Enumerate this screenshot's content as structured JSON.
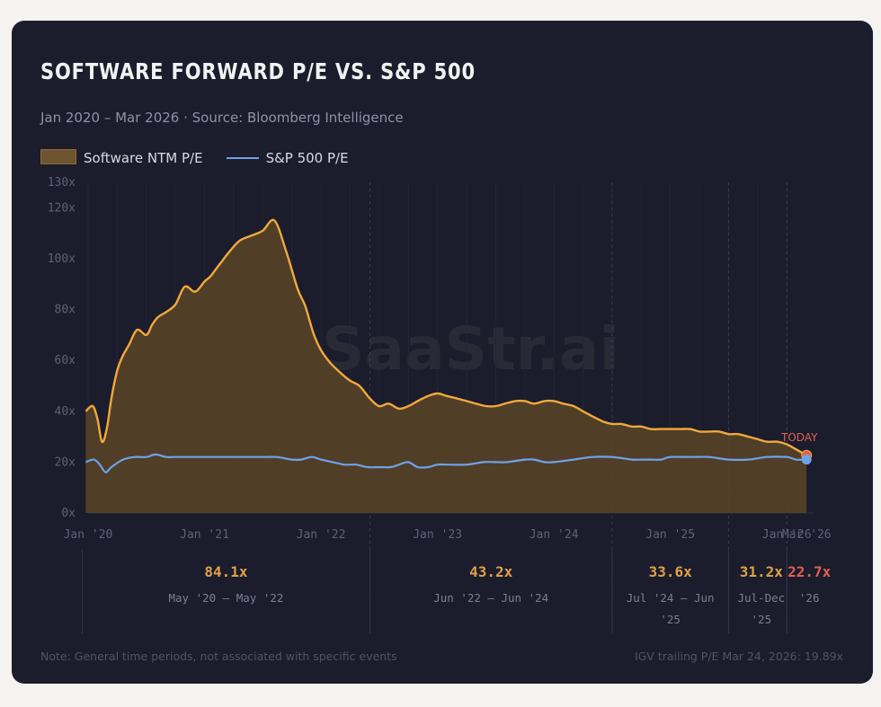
{
  "title": "SOFTWARE FORWARD P/E VS. S&P 500",
  "subtitle": "Jan 2020 – Mar 2026  ·  Source: Bloomberg Intelligence",
  "legend": {
    "software": "Software NTM P/E",
    "sp500": "S&P 500 P/E"
  },
  "watermark": "SaaStr.ai",
  "today_label": "TODAY",
  "footnote_left": "Note: General time periods, not associated with specific events",
  "footnote_right": "IGV trailing P/E Mar 24, 2026: 19.89x",
  "colors": {
    "software": "#f0a93b",
    "sp500": "#6ea2ea",
    "today": "#e06050",
    "card": "#1b1c2c"
  },
  "chart_data": {
    "type": "area",
    "title": "SOFTWARE FORWARD P/E VS. S&P 500",
    "xlabel": "",
    "ylabel": "",
    "x_range": [
      2020.0,
      2026.23
    ],
    "ylim": [
      0,
      130
    ],
    "y_ticks": [
      0,
      20,
      40,
      60,
      80,
      100,
      120,
      130
    ],
    "y_tick_labels": [
      "0x",
      "20x",
      "40x",
      "60x",
      "80x",
      "100x",
      "120x",
      "130x"
    ],
    "x_ticks": [
      2020.0,
      2021.0,
      2022.0,
      2023.0,
      2024.0,
      2025.0,
      2026.0,
      2026.17
    ],
    "x_tick_labels": [
      "Jan '20",
      "Jan '21",
      "Jan '22",
      "Jan '23",
      "Jan '24",
      "Jan '25",
      "Jan '26",
      "Mar '26"
    ],
    "period_dividers": [
      2022.42,
      2024.5,
      2025.5,
      2026.0
    ],
    "series": [
      {
        "name": "Software NTM P/E",
        "style": "area",
        "x": [
          2019.98,
          2020.04,
          2020.08,
          2020.12,
          2020.16,
          2020.2,
          2020.25,
          2020.3,
          2020.35,
          2020.42,
          2020.5,
          2020.55,
          2020.6,
          2020.67,
          2020.75,
          2020.83,
          2020.92,
          2021.0,
          2021.05,
          2021.1,
          2021.15,
          2021.2,
          2021.3,
          2021.4,
          2021.5,
          2021.6,
          2021.7,
          2021.8,
          2021.86,
          2021.9,
          2021.94,
          2022.0,
          2022.08,
          2022.17,
          2022.25,
          2022.33,
          2022.42,
          2022.5,
          2022.58,
          2022.67,
          2022.75,
          2022.83,
          2022.92,
          2023.0,
          2023.08,
          2023.17,
          2023.25,
          2023.33,
          2023.42,
          2023.5,
          2023.58,
          2023.67,
          2023.75,
          2023.83,
          2023.92,
          2024.0,
          2024.08,
          2024.17,
          2024.25,
          2024.33,
          2024.42,
          2024.5,
          2024.58,
          2024.67,
          2024.75,
          2024.83,
          2024.92,
          2025.0,
          2025.08,
          2025.17,
          2025.25,
          2025.33,
          2025.42,
          2025.5,
          2025.58,
          2025.67,
          2025.75,
          2025.83,
          2025.92,
          2026.0,
          2026.08,
          2026.17
        ],
        "values": [
          40,
          42,
          37,
          28,
          33,
          45,
          56,
          62,
          66,
          72,
          70,
          74,
          77,
          79,
          82,
          89,
          87,
          91,
          93,
          96,
          99,
          102,
          107,
          109,
          111,
          115,
          103,
          88,
          82,
          76,
          70,
          64,
          59,
          55,
          52,
          50,
          45,
          42,
          43,
          41,
          42,
          44,
          46,
          47,
          46,
          45,
          44,
          43,
          42,
          42,
          43,
          44,
          44,
          43,
          44,
          44,
          43,
          42,
          40,
          38,
          36,
          35,
          35,
          34,
          34,
          33,
          33,
          33,
          33,
          33,
          32,
          32,
          32,
          31,
          31,
          30,
          29,
          28,
          28,
          27,
          25,
          22.7
        ]
      },
      {
        "name": "S&P 500 P/E",
        "style": "line",
        "x": [
          2019.98,
          2020.05,
          2020.1,
          2020.15,
          2020.2,
          2020.3,
          2020.4,
          2020.5,
          2020.58,
          2020.67,
          2020.75,
          2021.0,
          2021.25,
          2021.5,
          2021.62,
          2021.75,
          2021.83,
          2021.92,
          2022.0,
          2022.1,
          2022.2,
          2022.3,
          2022.4,
          2022.5,
          2022.6,
          2022.67,
          2022.75,
          2022.83,
          2022.92,
          2023.0,
          2023.1,
          2023.25,
          2023.4,
          2023.5,
          2023.6,
          2023.75,
          2023.83,
          2023.92,
          2024.0,
          2024.17,
          2024.33,
          2024.5,
          2024.67,
          2024.75,
          2024.83,
          2024.92,
          2025.0,
          2025.17,
          2025.33,
          2025.5,
          2025.67,
          2025.83,
          2026.0,
          2026.08,
          2026.17
        ],
        "values": [
          20,
          21,
          19,
          16,
          18,
          21,
          22,
          22,
          23,
          22,
          22,
          22,
          22,
          22,
          22,
          21,
          21,
          22,
          21,
          20,
          19,
          19,
          18,
          18,
          18,
          19,
          20,
          18,
          18,
          19,
          19,
          19,
          20,
          20,
          20,
          21,
          21,
          20,
          20,
          21,
          22,
          22,
          21,
          21,
          21,
          21,
          22,
          22,
          22,
          21,
          21,
          22,
          22,
          21,
          21
        ]
      }
    ],
    "annotations": [
      {
        "text": "TODAY",
        "x": 2026.0,
        "y": 29
      }
    ],
    "periods": [
      {
        "value": "84.1x",
        "label_lines": [
          "May '20 – May '22"
        ],
        "x_start": 2019.98,
        "x_end": 2022.42,
        "color": "#e0a046"
      },
      {
        "value": "43.2x",
        "label_lines": [
          "Jun '22 – Jun '24"
        ],
        "x_start": 2022.42,
        "x_end": 2024.5,
        "color": "#e0a046"
      },
      {
        "value": "33.6x",
        "label_lines": [
          "Jul '24 – Jun",
          "'25"
        ],
        "x_start": 2024.5,
        "x_end": 2025.5,
        "color": "#e0a046"
      },
      {
        "value": "31.2x",
        "label_lines": [
          "Jul-Dec",
          "'25"
        ],
        "x_start": 2025.5,
        "x_end": 2026.0,
        "color": "#e0a046"
      },
      {
        "value": "22.7x",
        "label_lines": [
          "'26"
        ],
        "x_start": 2026.0,
        "x_end": 2026.35,
        "color": "#e06050"
      }
    ]
  }
}
